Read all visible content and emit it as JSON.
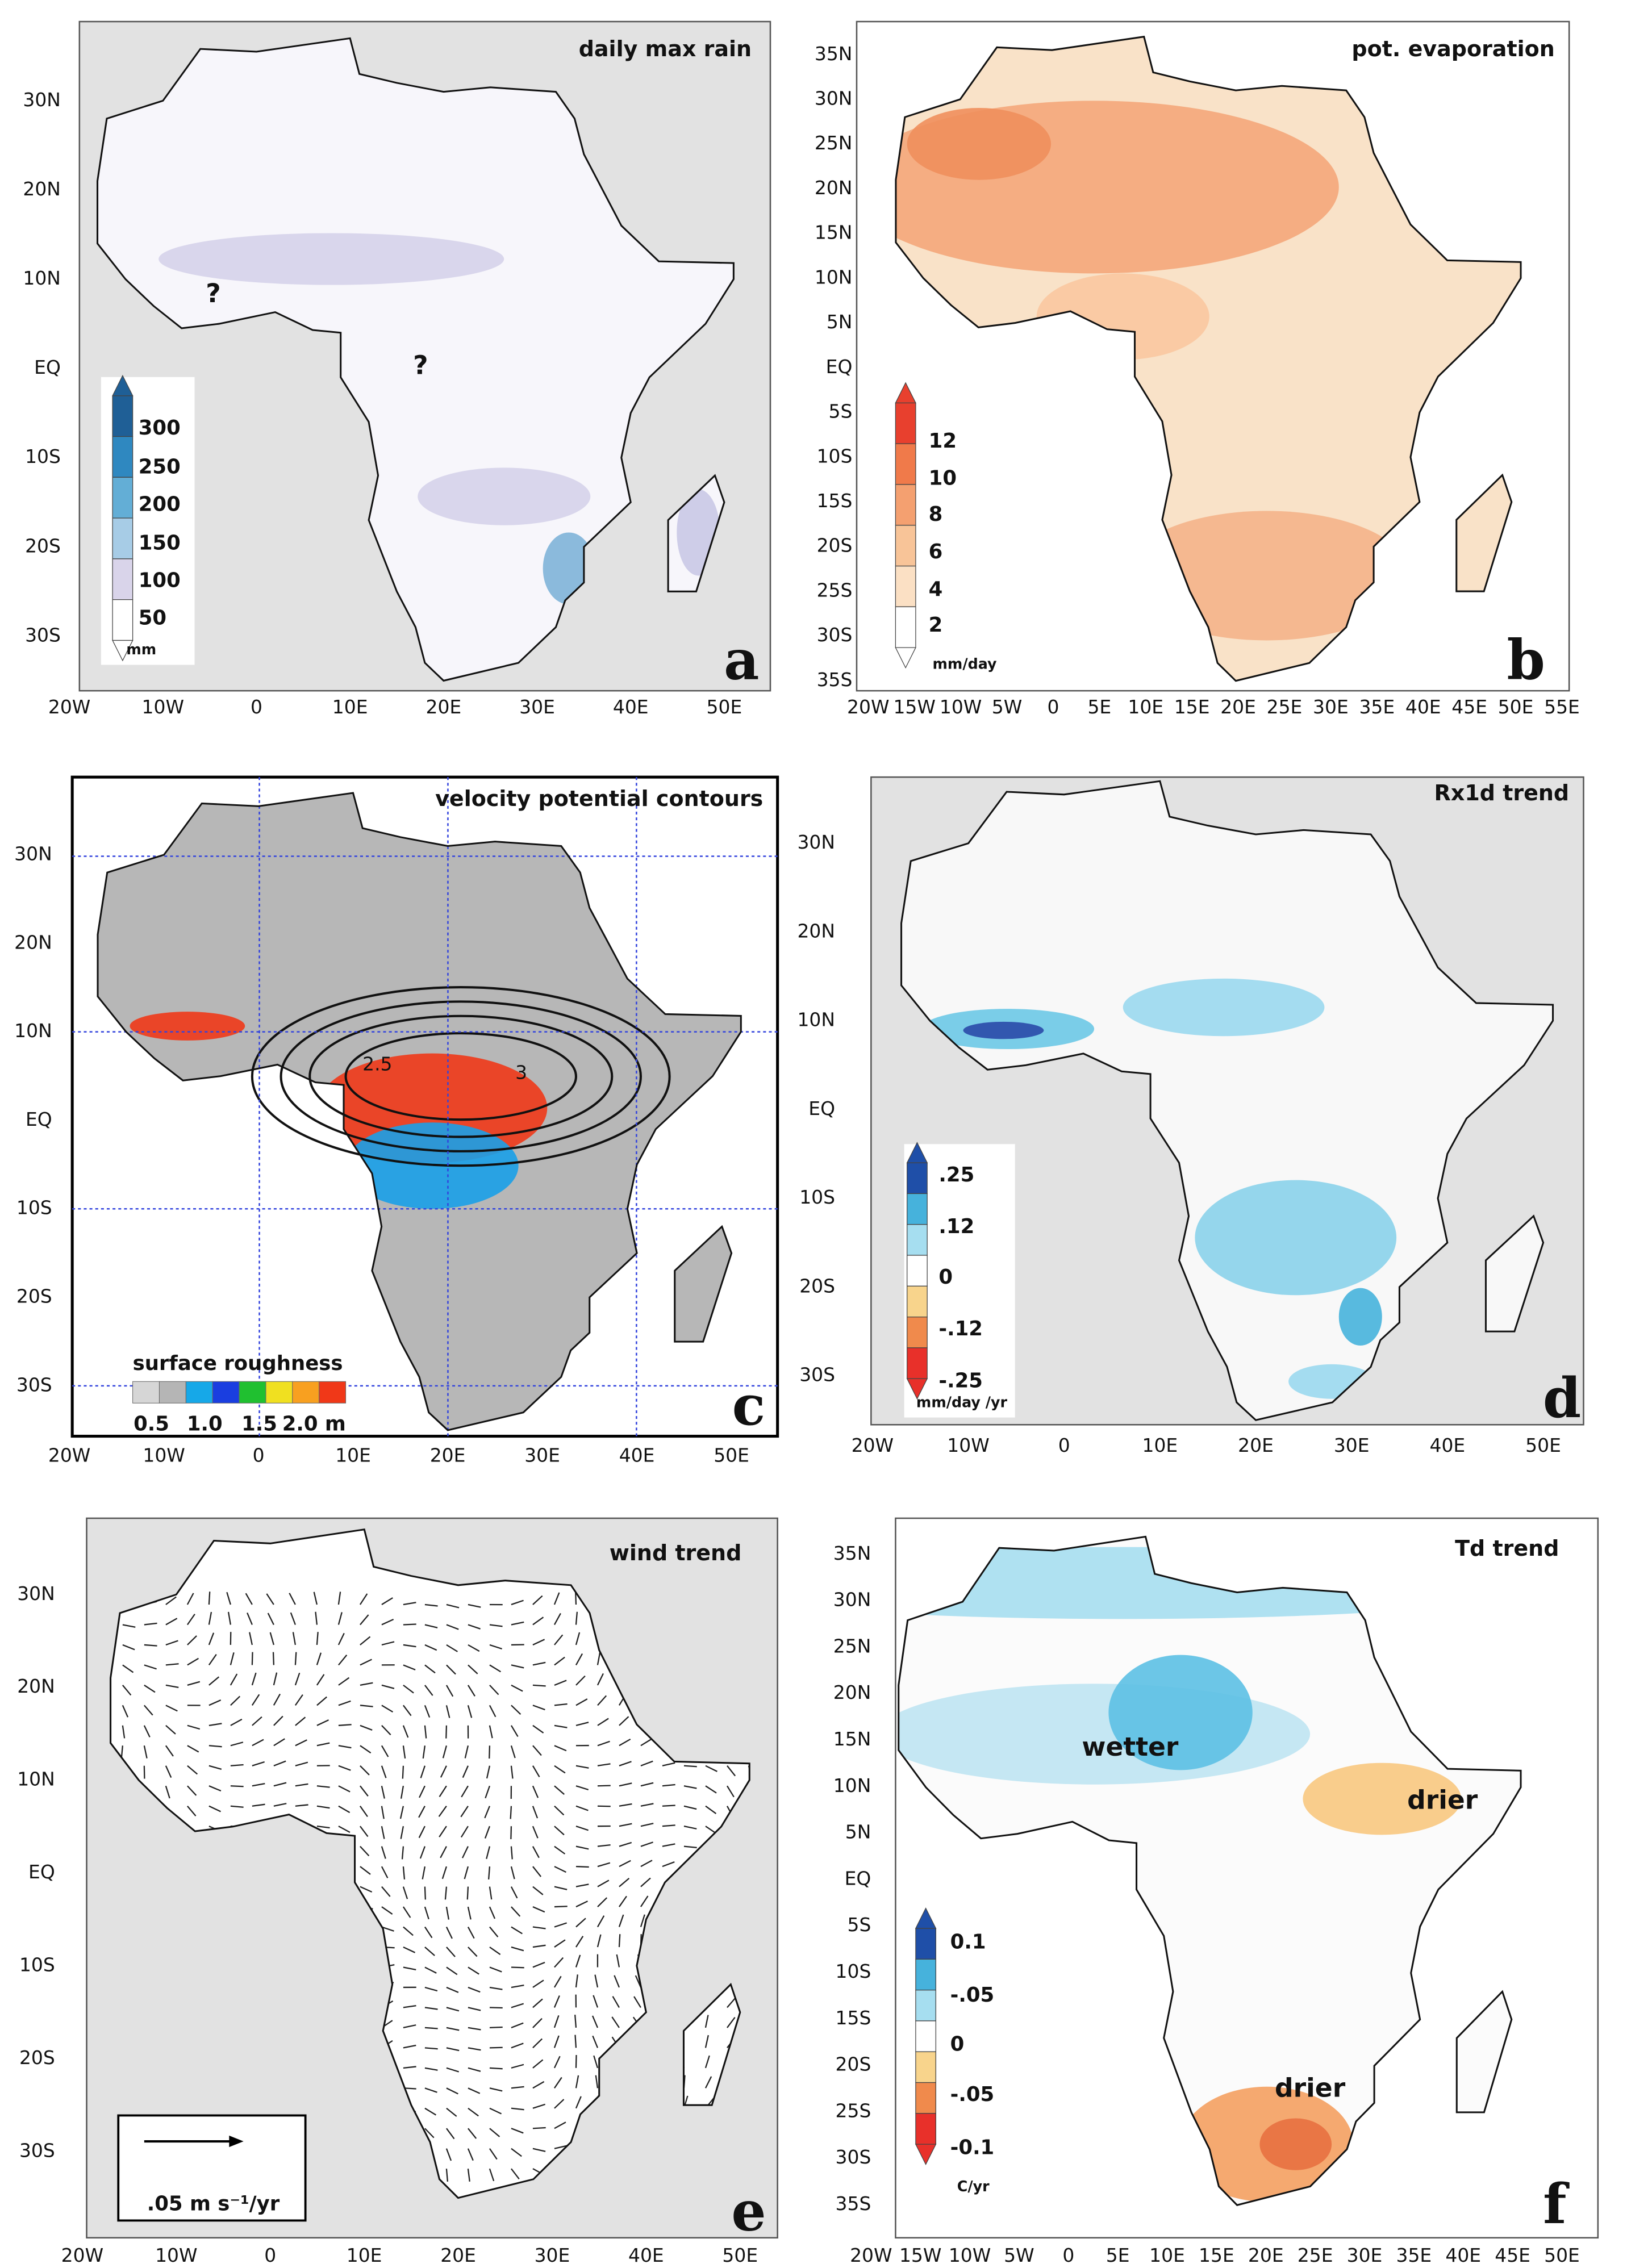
{
  "panels": [
    {
      "letter": "a",
      "title": "daily max rain",
      "yticks": [
        "30N",
        "20N",
        "10N",
        "EQ",
        "10S",
        "20S",
        "30S"
      ],
      "xticks": [
        "20W",
        "10W",
        "0",
        "10E",
        "20E",
        "30E",
        "40E",
        "50E"
      ],
      "legend": {
        "labels": [
          "300",
          "250",
          "200",
          "150",
          "100",
          "50"
        ],
        "unit": "mm"
      },
      "annotations": [
        "?",
        "?"
      ]
    },
    {
      "letter": "b",
      "title": "pot. evaporation",
      "yticks": [
        "35N",
        "30N",
        "25N",
        "20N",
        "15N",
        "10N",
        "5N",
        "EQ",
        "5S",
        "10S",
        "15S",
        "20S",
        "25S",
        "30S",
        "35S"
      ],
      "xticks": [
        "20W",
        "15W",
        "10W",
        "5W",
        "0",
        "5E",
        "10E",
        "15E",
        "20E",
        "25E",
        "30E",
        "35E",
        "40E",
        "45E",
        "50E",
        "55E"
      ],
      "legend": {
        "labels": [
          "12",
          "10",
          "8",
          "6",
          "4",
          "2"
        ],
        "unit": "mm/day"
      }
    },
    {
      "letter": "c",
      "title": "velocity potential contours",
      "yticks": [
        "30N",
        "20N",
        "10N",
        "EQ",
        "10S",
        "20S",
        "30S"
      ],
      "xticks": [
        "20W",
        "10W",
        "0",
        "10E",
        "20E",
        "30E",
        "40E",
        "50E"
      ],
      "legend": {
        "title": "surface roughness",
        "labels": [
          "0.5",
          "1.0",
          "1.5",
          "2.0 m"
        ]
      },
      "annotations": [
        "2.5",
        "3"
      ]
    },
    {
      "letter": "d",
      "title": "Rx1d trend",
      "yticks": [
        "30N",
        "20N",
        "10N",
        "EQ",
        "10S",
        "20S",
        "30S"
      ],
      "xticks": [
        "20W",
        "10W",
        "0",
        "10E",
        "20E",
        "30E",
        "40E",
        "50E"
      ],
      "legend": {
        "labels": [
          ".25",
          ".12",
          "0",
          "-.12",
          "-.25"
        ],
        "unit": "mm/day /yr"
      }
    },
    {
      "letter": "e",
      "title": "wind trend",
      "yticks": [
        "30N",
        "20N",
        "10N",
        "EQ",
        "10S",
        "20S",
        "30S"
      ],
      "xticks": [
        "20W",
        "10W",
        "0",
        "10E",
        "20E",
        "30E",
        "40E",
        "50E"
      ],
      "legend": {
        "unit": ".05 m s⁻¹/yr"
      }
    },
    {
      "letter": "f",
      "title": "Td trend",
      "yticks": [
        "35N",
        "30N",
        "25N",
        "20N",
        "15N",
        "10N",
        "5N",
        "EQ",
        "5S",
        "10S",
        "15S",
        "20S",
        "25S",
        "30S",
        "35S"
      ],
      "xticks": [
        "20W",
        "15W",
        "10W",
        "5W",
        "0",
        "5E",
        "10E",
        "15E",
        "20E",
        "25E",
        "30E",
        "35E",
        "40E",
        "45E",
        "50E"
      ],
      "legend": {
        "labels": [
          "0.1",
          "-.05",
          "0",
          "-.05",
          "-0.1"
        ],
        "unit": "C/yr"
      },
      "annotations": [
        "wetter",
        "drier",
        "drier"
      ]
    }
  ]
}
